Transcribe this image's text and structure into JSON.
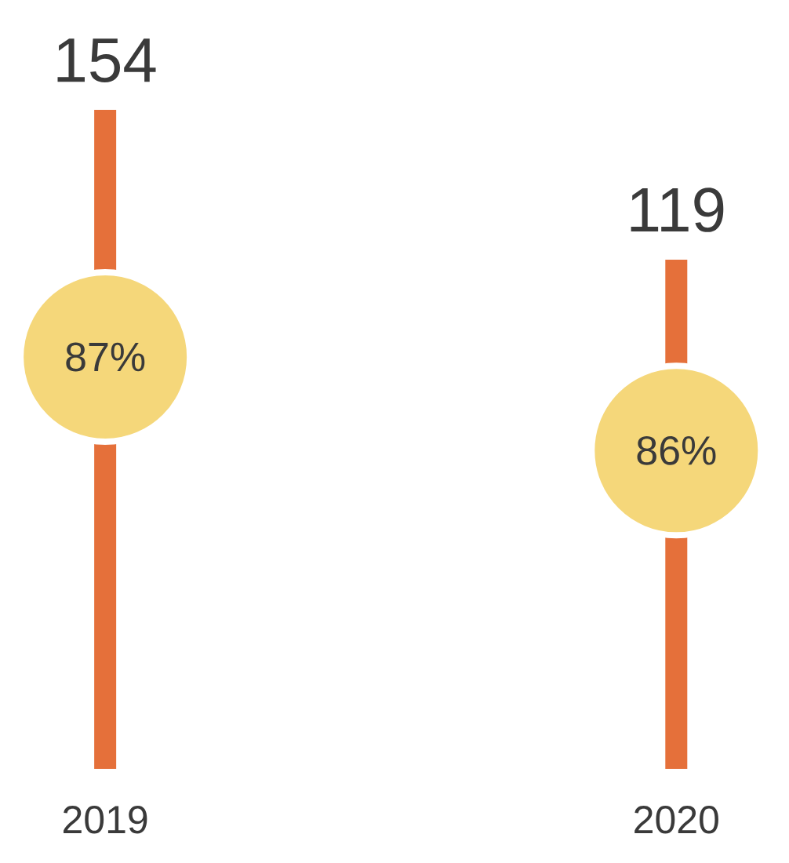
{
  "chart_data": {
    "type": "bar",
    "categories": [
      "2019",
      "2020"
    ],
    "values": [
      154,
      119
    ],
    "color": "#e5703a",
    "data_labels": true,
    "annotations": [
      "87%",
      "86%"
    ]
  }
}
